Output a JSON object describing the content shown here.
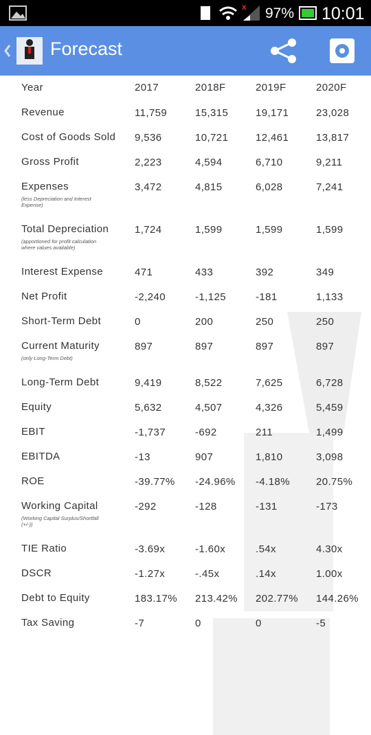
{
  "status_bar": {
    "battery": "97%",
    "time": "10:01"
  },
  "app_bar": {
    "title": "Forecast"
  },
  "table": {
    "header": [
      "Year",
      "2017",
      "2018F",
      "2019F",
      "2020F"
    ],
    "rows": [
      {
        "label": "Revenue",
        "values": [
          "11,759",
          "15,315",
          "19,171",
          "23,028"
        ]
      },
      {
        "label": "Cost of Goods Sold",
        "values": [
          "9,536",
          "10,721",
          "12,461",
          "13,817"
        ]
      },
      {
        "label": "Gross Profit",
        "values": [
          "2,223",
          "4,594",
          "6,710",
          "9,211"
        ]
      },
      {
        "label": "Expenses",
        "note": "(less Depreciation and Interest Expense)",
        "values": [
          "3,472",
          "4,815",
          "6,028",
          "7,241"
        ]
      },
      {
        "label": "Total Depreciation",
        "note": "(apportioned for profit calculation where values available)",
        "values": [
          "1,724",
          "1,599",
          "1,599",
          "1,599"
        ]
      },
      {
        "label": "Interest Expense",
        "values": [
          "471",
          "433",
          "392",
          "349"
        ]
      },
      {
        "label": "Net Profit",
        "values": [
          "-2,240",
          "-1,125",
          "-181",
          "1,133"
        ]
      },
      {
        "label": "Short-Term Debt",
        "values": [
          "0",
          "200",
          "250",
          "250"
        ]
      },
      {
        "label": "Current Maturity",
        "note": "(only Long-Term Debt)",
        "values": [
          "897",
          "897",
          "897",
          "897"
        ]
      },
      {
        "label": "Long-Term Debt",
        "values": [
          "9,419",
          "8,522",
          "7,625",
          "6,728"
        ]
      },
      {
        "label": "Equity",
        "values": [
          "5,632",
          "4,507",
          "4,326",
          "5,459"
        ]
      },
      {
        "label": "EBIT",
        "values": [
          "-1,737",
          "-692",
          "211",
          "1,499"
        ]
      },
      {
        "label": "EBITDA",
        "values": [
          "-13",
          "907",
          "1,810",
          "3,098"
        ]
      },
      {
        "label": "ROE",
        "values": [
          "-39.77%",
          "-24.96%",
          "-4.18%",
          "20.75%"
        ]
      },
      {
        "label": "Working Capital",
        "note": "(Working Capital Surplus/Shortfall (+/-))",
        "values": [
          "-292",
          "-128",
          "-131",
          "-173"
        ]
      },
      {
        "label": "TIE Ratio",
        "values": [
          "-3.69x",
          "-1.60x",
          ".54x",
          "4.30x"
        ]
      },
      {
        "label": "DSCR",
        "values": [
          "-1.27x",
          "-.45x",
          ".14x",
          "1.00x"
        ]
      },
      {
        "label": "Debt to Equity",
        "values": [
          "183.17%",
          "213.42%",
          "202.77%",
          "144.26%"
        ]
      },
      {
        "label": "Tax Saving",
        "values": [
          "-7",
          "0",
          "0",
          "-5"
        ]
      }
    ]
  }
}
